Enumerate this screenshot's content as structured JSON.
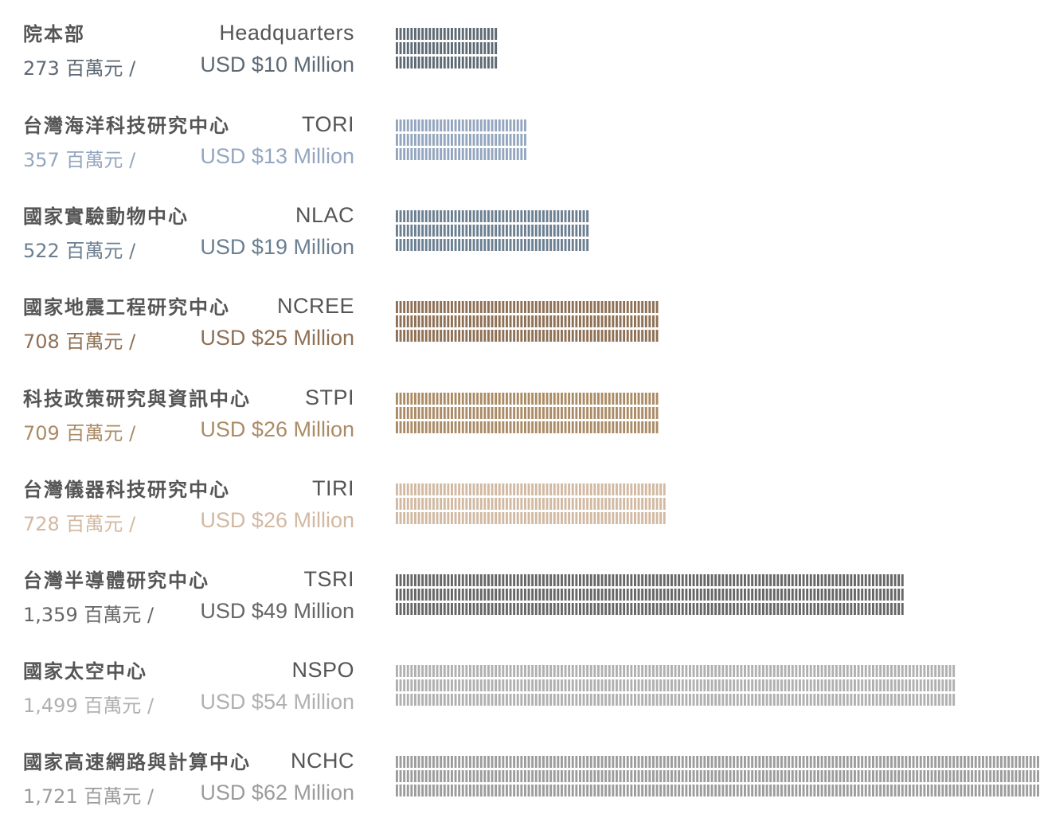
{
  "chart_data": {
    "type": "bar",
    "unit_ntd": "百萬元",
    "unit_usd": "Million",
    "rows": [
      {
        "name_zh": "院本部",
        "name_en": "Headquarters",
        "ntd_label": "273 百萬元 /",
        "usd_label": "USD $10 Million",
        "ntd_value": 273,
        "usd_value": 10,
        "color": "#5d6975"
      },
      {
        "name_zh": "台灣海洋科技研究中心",
        "name_en": "TORI",
        "ntd_label": "357 百萬元 /",
        "usd_label": "USD $13 Million",
        "ntd_value": 357,
        "usd_value": 13,
        "color": "#94a6bf"
      },
      {
        "name_zh": "國家實驗動物中心",
        "name_en": "NLAC",
        "ntd_label": "522 百萬元 /",
        "usd_label": "USD $19 Million",
        "ntd_value": 522,
        "usd_value": 19,
        "color": "#6b7f91"
      },
      {
        "name_zh": "國家地震工程研究中心",
        "name_en": "NCREE",
        "ntd_label": "708 百萬元 /",
        "usd_label": "USD $25 Million",
        "ntd_value": 708,
        "usd_value": 25,
        "color": "#8e7055"
      },
      {
        "name_zh": "科技政策研究與資訊中心",
        "name_en": "STPI",
        "ntd_label": "709 百萬元 /",
        "usd_label": "USD $26 Million",
        "ntd_value": 709,
        "usd_value": 26,
        "color": "#ab8b66"
      },
      {
        "name_zh": "台灣儀器科技研究中心",
        "name_en": "TIRI",
        "ntd_label": "728 百萬元 /",
        "usd_label": "USD $26 Million",
        "ntd_value": 728,
        "usd_value": 26,
        "color": "#d2b9a2"
      },
      {
        "name_zh": "台灣半導體研究中心",
        "name_en": "TSRI",
        "ntd_label": "1,359 百萬元 /",
        "usd_label": "USD $49 Million",
        "ntd_value": 1359,
        "usd_value": 49,
        "color": "#666666"
      },
      {
        "name_zh": "國家太空中心",
        "name_en": "NSPO",
        "ntd_label": "1,499 百萬元 /",
        "usd_label": "USD $54 Million",
        "ntd_value": 1499,
        "usd_value": 54,
        "color": "#b0b0b0"
      },
      {
        "name_zh": "國家高速網路與計算中心",
        "name_en": "NCHC",
        "ntd_label": "1,721 百萬元 /",
        "usd_label": "USD $62 Million",
        "ntd_value": 1721,
        "usd_value": 62,
        "color": "#9c9c9c"
      }
    ],
    "xlim": [
      0,
      1721
    ],
    "marks_per_column": 3,
    "grid": false,
    "legend": "none"
  }
}
